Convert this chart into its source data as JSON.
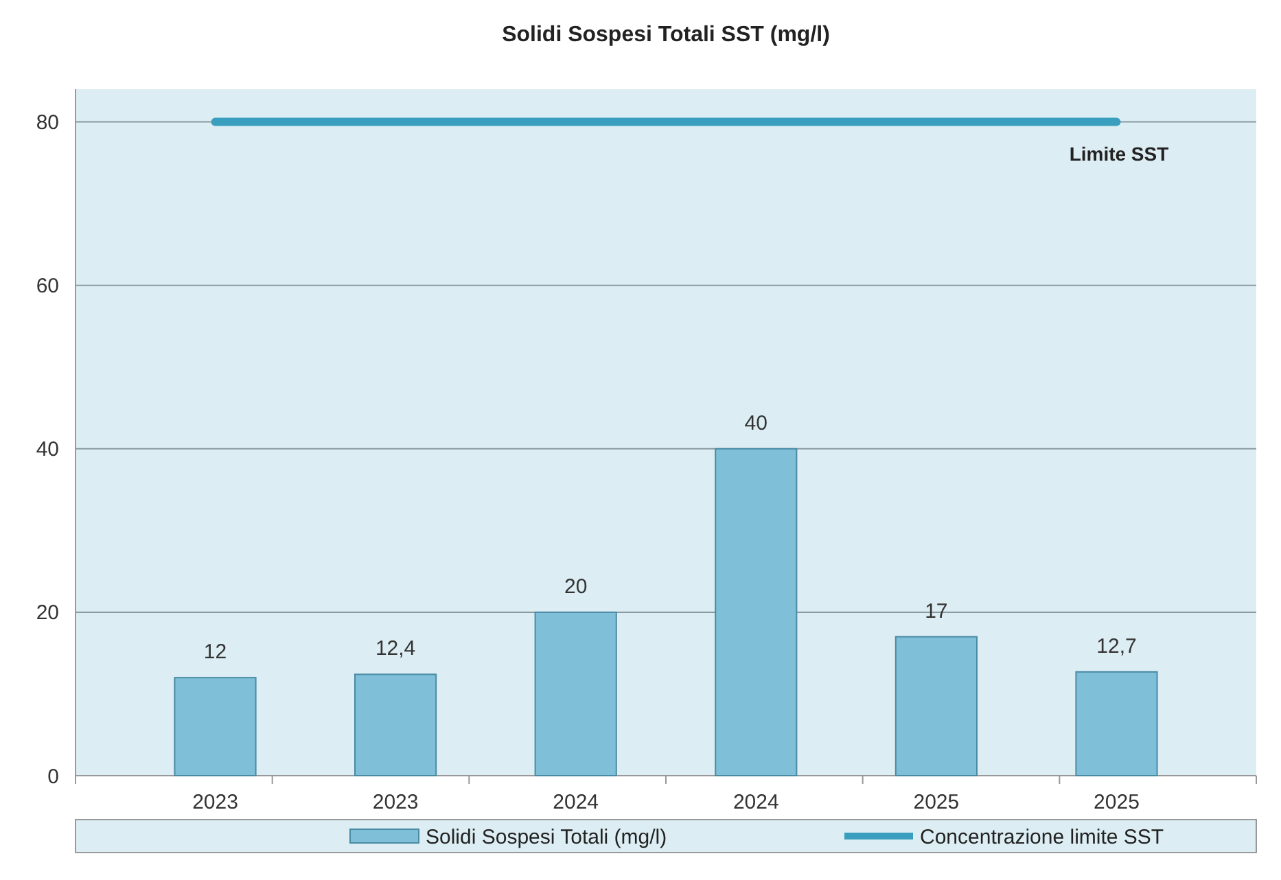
{
  "chart_data": {
    "type": "bar",
    "title": "Solidi Sospesi Totali SST (mg/l)",
    "categories": [
      "2023",
      "2023",
      "2024",
      "2024",
      "2025",
      "2025"
    ],
    "series": [
      {
        "name": "Solidi Sospesi Totali (mg/l)",
        "color": "#7fc0d8",
        "values": [
          12,
          12.4,
          20,
          40,
          17,
          12.7
        ],
        "value_labels": [
          "12",
          "12,4",
          "20",
          "40",
          "17",
          "12,7"
        ]
      },
      {
        "name": "Concentrazione limite SST",
        "type": "line",
        "color": "#3a9fbf",
        "values": [
          80,
          80,
          80,
          80,
          80,
          80
        ]
      }
    ],
    "annotations": [
      {
        "text": "Limite SST",
        "y": 80
      }
    ],
    "ylim": [
      0,
      84
    ],
    "yticks": [
      0,
      20,
      40,
      60,
      80
    ],
    "grid": "y",
    "legend": "bottom"
  }
}
